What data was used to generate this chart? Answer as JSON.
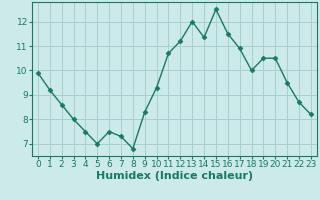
{
  "x": [
    0,
    1,
    2,
    3,
    4,
    5,
    6,
    7,
    8,
    9,
    10,
    11,
    12,
    13,
    14,
    15,
    16,
    17,
    18,
    19,
    20,
    21,
    22,
    23
  ],
  "y": [
    9.9,
    9.2,
    8.6,
    8.0,
    7.5,
    7.0,
    7.5,
    7.3,
    6.8,
    8.3,
    9.3,
    10.7,
    11.2,
    12.0,
    11.35,
    12.5,
    11.5,
    10.9,
    10.0,
    10.5,
    10.5,
    9.5,
    8.7,
    8.2
  ],
  "line_color": "#1a7a5e",
  "marker": "D",
  "markersize": 2.5,
  "linewidth": 1.0,
  "bg_color": "#cceaea",
  "grid_color": "#aacfcf",
  "xlabel": "Humidex (Indice chaleur)",
  "xlabel_fontsize": 8,
  "yticks": [
    7,
    8,
    9,
    10,
    11,
    12
  ],
  "xticks": [
    0,
    1,
    2,
    3,
    4,
    5,
    6,
    7,
    8,
    9,
    10,
    11,
    12,
    13,
    14,
    15,
    16,
    17,
    18,
    19,
    20,
    21,
    22,
    23
  ],
  "xlim": [
    -0.5,
    23.5
  ],
  "ylim": [
    6.5,
    12.8
  ],
  "tick_color": "#1a7a5e",
  "tick_fontsize": 6.5,
  "axis_color": "#1a7a5e"
}
